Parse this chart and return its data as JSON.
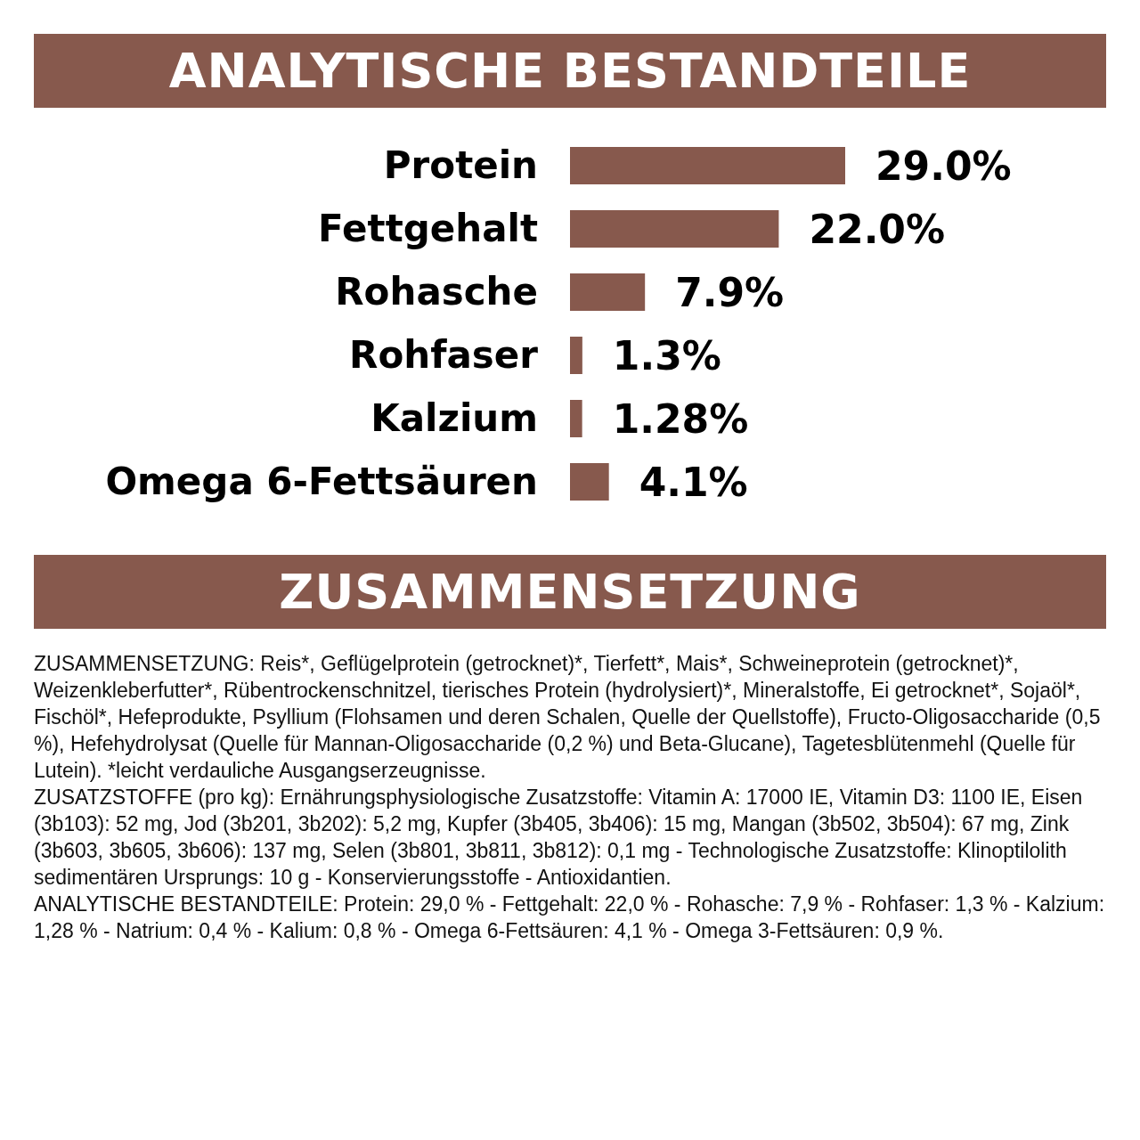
{
  "chart_data": {
    "type": "bar",
    "orientation": "horizontal",
    "title": "ANALYTISCHE BESTANDTEILE",
    "categories": [
      "Protein",
      "Fettgehalt",
      "Rohasche",
      "Rohfaser",
      "Kalzium",
      "Omega 6-Fettsäuren"
    ],
    "values": [
      29.0,
      22.0,
      7.9,
      1.3,
      1.28,
      4.1
    ],
    "value_labels": [
      "29.0%",
      "22.0%",
      "7.9%",
      "1.3%",
      "1.28%",
      "4.1%"
    ],
    "color": "#87594d",
    "annotations": [
      "ZUSAMMENSETZUNG",
      "ZUSAMMENSETZUNG: Reis*, Geflügelprotein (getrocknet)*, Tierfett*, Mais*, Schweineprotein (getrocknet)*, Weizenkleberfutter*, Rübentrockenschnitzel, tierisches Protein (hydrolysiert)*, Mineralstoffe, Ei getrocknet*, Sojaöl*, Fischöl*, Hefeprodukte, Psyllium (Flohsamen und deren Schalen, Quelle der Quellstoffe), Fructo-Oligosaccharide (0,5 %), Hefehydrolysat (Quelle für Mannan-Oligosaccharide (0,2 %) und Beta-Glucane), Tagetesblütenmehl (Quelle für Lutein). *leicht verdauliche Ausgangserzeugnisse.",
      "ZUSATZSTOFFE (pro kg): Ernährungsphysiologische Zusatzstoffe: Vitamin A: 17000 IE, Vitamin D3: 1100 IE, Eisen (3b103): 52 mg, Jod (3b201, 3b202): 5,2 mg, Kupfer (3b405, 3b406): 15 mg, Mangan (3b502, 3b504): 67 mg, Zink (3b603, 3b605, 3b606): 137 mg, Selen (3b801, 3b811, 3b812): 0,1 mg - Technologische Zusatzstoffe: Klinoptilolith sedimentären Ursprungs: 10 g - Konservierungsstoffe - Antioxidantien.",
      "ANALYTISCHE BESTANDTEILE: Protein: 29,0 % - Fettgehalt: 22,0 % - Rohasche: 7,9 % - Rohfaser: 1,3 % - Kalzium: 1,28 % - Natrium: 0,4 % - Kalium: 0,8 % - Omega 6-Fettsäuren: 4,1 % - Omega 3-Fettsäuren: 0,9 %."
    ]
  }
}
